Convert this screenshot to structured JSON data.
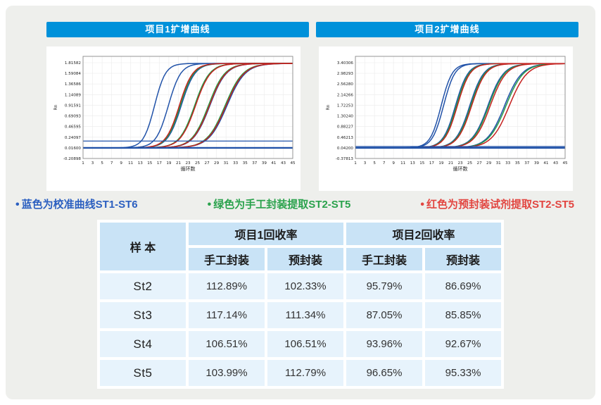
{
  "headers": {
    "project1": "项目1扩增曲线",
    "project2": "项目2扩增曲线"
  },
  "colors": {
    "header_bar": "#0091da",
    "page_bg": "#eeefec",
    "curve_blue": "#2152a8",
    "curve_green": "#259b48",
    "curve_red": "#c5211f",
    "table_header_bg": "#c9e3f6",
    "table_cell_bg": "#e7f3fc"
  },
  "legend": [
    {
      "bullet": "•",
      "text": "蓝色为校准曲线ST1-ST6",
      "color": "#2b5fc0"
    },
    {
      "bullet": "•",
      "text": "绿色为手工封装提取ST2-ST5",
      "color": "#2aa24c"
    },
    {
      "bullet": "•",
      "text": "红色为预封装试剂提取ST2-ST5",
      "color": "#e24540"
    }
  ],
  "table": {
    "sample_header": "样 本",
    "group1": "项目1回收率",
    "group2": "项目2回收率",
    "sub": [
      "手工封装",
      "预封装",
      "手工封装",
      "预封装"
    ],
    "rows": [
      {
        "sample": "St2",
        "p1_manual": "112.89%",
        "p1_pre": "102.33%",
        "p2_manual": "95.79%",
        "p2_pre": "86.69%"
      },
      {
        "sample": "St3",
        "p1_manual": "117.14%",
        "p1_pre": "111.34%",
        "p2_manual": "87.05%",
        "p2_pre": "85.85%"
      },
      {
        "sample": "St4",
        "p1_manual": "106.51%",
        "p1_pre": "106.51%",
        "p2_manual": "93.96%",
        "p2_pre": "92.67%"
      },
      {
        "sample": "St5",
        "p1_manual": "103.99%",
        "p1_pre": "112.79%",
        "p2_manual": "96.65%",
        "p2_pre": "95.33%"
      }
    ]
  },
  "chart_data": [
    {
      "type": "line",
      "title": "项目1扩增曲线",
      "xlabel": "循环数",
      "ylabel": "Rn",
      "xlim": [
        1,
        45
      ],
      "x_ticks": [
        1,
        3,
        5,
        7,
        9,
        11,
        13,
        15,
        17,
        19,
        21,
        23,
        25,
        27,
        29,
        31,
        33,
        35,
        37,
        39,
        41,
        43,
        45
      ],
      "y_ticks": [
        "1.81582",
        "1.59084",
        "1.36586",
        "1.14089",
        "0.91591",
        "0.69093",
        "0.46595",
        "0.24097",
        "0.01600",
        "-0.20898"
      ],
      "grid": true,
      "baseline": 0.016,
      "plateau": 1.8,
      "threshold": 0.16,
      "sig_base": 1.15,
      "sig_ref": 16,
      "series": [
        {
          "name": "校准ST1",
          "color": "blue",
          "ct": 16.0
        },
        {
          "name": "校准ST2",
          "color": "blue",
          "ct": 18.9
        },
        {
          "name": "校准ST3",
          "color": "blue",
          "ct": 21.6
        },
        {
          "name": "校准ST4",
          "color": "blue",
          "ct": 24.5
        },
        {
          "name": "校准ST5",
          "color": "blue",
          "ct": 27.6
        },
        {
          "name": "校准ST6",
          "color": "blue",
          "ct": 31.2
        },
        {
          "name": "手工封装ST2",
          "color": "green",
          "ct": 21.4
        },
        {
          "name": "手工封装ST3",
          "color": "green",
          "ct": 24.4
        },
        {
          "name": "手工封装ST4",
          "color": "green",
          "ct": 27.3
        },
        {
          "name": "手工封装ST5",
          "color": "green",
          "ct": 30.8
        },
        {
          "name": "预封装ST2",
          "color": "red",
          "ct": 21.2
        },
        {
          "name": "预封装ST3",
          "color": "red",
          "ct": 24.6
        },
        {
          "name": "预封装ST4",
          "color": "red",
          "ct": 27.5
        },
        {
          "name": "预封装ST5",
          "color": "red",
          "ct": 31.0
        }
      ]
    },
    {
      "type": "line",
      "title": "项目2扩增曲线",
      "xlabel": "循环数",
      "ylabel": "Rn",
      "xlim": [
        1,
        45
      ],
      "x_ticks": [
        1,
        3,
        5,
        7,
        9,
        11,
        13,
        15,
        17,
        19,
        21,
        23,
        25,
        27,
        29,
        31,
        33,
        35,
        37,
        39,
        41,
        43,
        45
      ],
      "y_ticks": [
        "3.40306",
        "2.98293",
        "2.56280",
        "2.14266",
        "1.72253",
        "1.30240",
        "0.88227",
        "0.46213",
        "0.04200",
        "-0.37813"
      ],
      "grid": true,
      "baseline": 0.042,
      "plateau": 3.37,
      "threshold": 0.095,
      "sig_base": 1.15,
      "sig_ref": 19,
      "series": [
        {
          "name": "校准ST1",
          "color": "blue",
          "ct": 19.0
        },
        {
          "name": "校准ST2",
          "color": "blue",
          "ct": 19.5
        },
        {
          "name": "校准ST3",
          "color": "blue",
          "ct": 22.0
        },
        {
          "name": "校准ST4",
          "color": "blue",
          "ct": 25.0
        },
        {
          "name": "校准ST5",
          "color": "blue",
          "ct": 28.8
        },
        {
          "name": "校准ST6",
          "color": "blue",
          "ct": 32.3
        },
        {
          "name": "手工封装ST2",
          "color": "green",
          "ct": 22.2
        },
        {
          "name": "手工封装ST3",
          "color": "green",
          "ct": 25.2
        },
        {
          "name": "手工封装ST4",
          "color": "green",
          "ct": 29.0
        },
        {
          "name": "手工封装ST5",
          "color": "green",
          "ct": 32.6
        },
        {
          "name": "预封装ST2",
          "color": "red",
          "ct": 22.4
        },
        {
          "name": "预封装ST3",
          "color": "red",
          "ct": 25.4
        },
        {
          "name": "预封装ST4",
          "color": "red",
          "ct": 29.3
        },
        {
          "name": "预封装ST5",
          "color": "red",
          "ct": 33.3
        }
      ]
    }
  ]
}
